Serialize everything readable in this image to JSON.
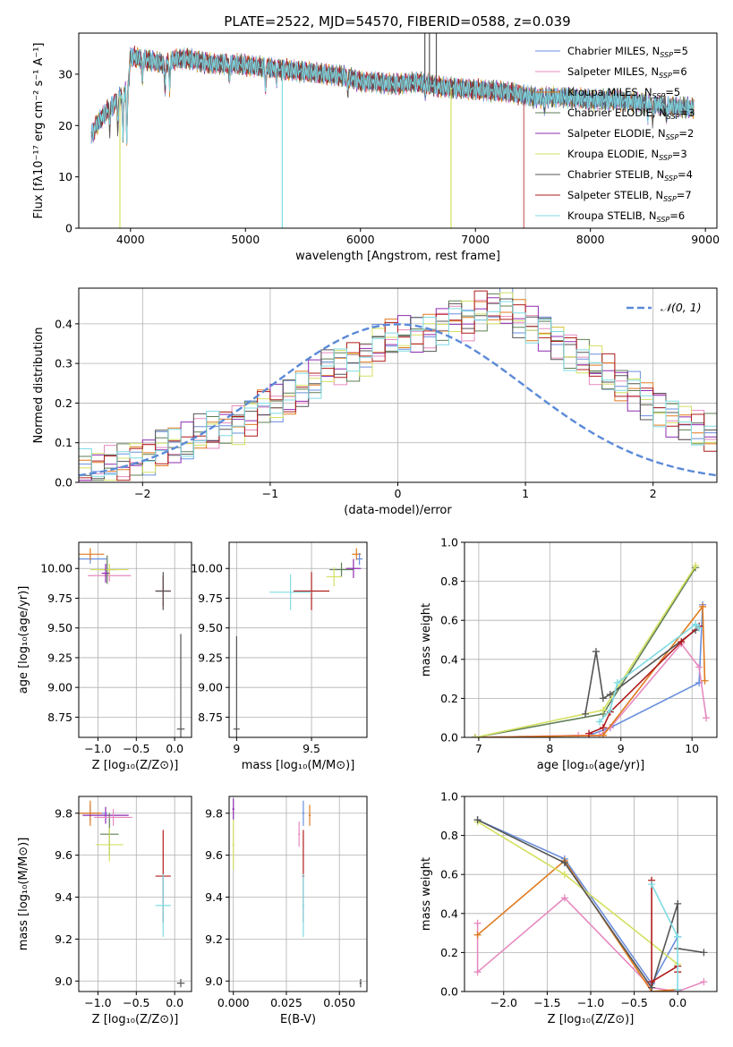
{
  "figure": {
    "title": "PLATE=2522, MJD=54570, FIBERID=0588, z=0.039"
  },
  "colors": {
    "chabrier_miles": "#6a8fdc",
    "salpeter_miles": "#e68ac0",
    "kroupa_miles": "#e07a1f",
    "chabrier_elodie": "#5f7f56",
    "salpeter_elodie": "#8e2bb0",
    "kroupa_elodie": "#d4e060",
    "chabrier_stelib": "#555555",
    "salpeter_stelib": "#b01c1c",
    "kroupa_stelib": "#7fdbe3",
    "normal_curve": "#5b8ad8"
  },
  "legend_spectrum": [
    {
      "label": "Chabrier MILES, N",
      "sub": "SSP",
      "tail": "=5",
      "color_key": "chabrier_miles"
    },
    {
      "label": "Salpeter MILES, N",
      "sub": "SSP",
      "tail": "=6",
      "color_key": "salpeter_miles"
    },
    {
      "label": "Kroupa MILES, N",
      "sub": "SSP",
      "tail": "=5",
      "color_key": "kroupa_miles"
    },
    {
      "label": "Chabrier ELODIE, N",
      "sub": "SSP",
      "tail": "=3",
      "color_key": "chabrier_elodie"
    },
    {
      "label": "Salpeter ELODIE, N",
      "sub": "SSP",
      "tail": "=2",
      "color_key": "salpeter_elodie"
    },
    {
      "label": "Kroupa ELODIE, N",
      "sub": "SSP",
      "tail": "=3",
      "color_key": "kroupa_elodie"
    },
    {
      "label": "Chabrier STELIB, N",
      "sub": "SSP",
      "tail": "=4",
      "color_key": "chabrier_stelib"
    },
    {
      "label": "Salpeter STELIB, N",
      "sub": "SSP",
      "tail": "=7",
      "color_key": "salpeter_stelib"
    },
    {
      "label": "Kroupa STELIB, N",
      "sub": "SSP",
      "tail": "=6",
      "color_key": "kroupa_stelib"
    }
  ],
  "chart_data": [
    {
      "id": "spectrum",
      "type": "line",
      "xlabel": "wavelength [Angstrom, rest frame]",
      "ylabel": "Flux [fλ10⁻¹⁷ erg cm⁻² s⁻¹ A⁻¹]",
      "xlim": [
        3550,
        9100
      ],
      "ylim": [
        0,
        38
      ],
      "xticks": [
        4000,
        5000,
        6000,
        7000,
        8000,
        9000
      ],
      "yticks": [
        0,
        10,
        20,
        30
      ],
      "continuum": {
        "x": [
          3660,
          3700,
          3750,
          3800,
          3850,
          3900,
          3950,
          3980,
          4000,
          4100,
          4200,
          4300,
          4400,
          4500,
          4700,
          4900,
          5100,
          5300,
          5500,
          5700,
          5900,
          6000,
          6100,
          6300,
          6500,
          6700,
          7000,
          7300,
          7500,
          7800,
          8000,
          8200,
          8400,
          8600,
          8800,
          8900
        ],
        "y": [
          18,
          20,
          21.5,
          23,
          24,
          25.5,
          26.5,
          27.5,
          33.5,
          33,
          32.5,
          32,
          33,
          33,
          32,
          32,
          31.5,
          31,
          30.5,
          30,
          29.5,
          28.5,
          28.5,
          28,
          28.5,
          27.5,
          27,
          26.5,
          25.5,
          25.5,
          25,
          25,
          24.5,
          24,
          23.5,
          23.5
        ]
      },
      "absorption_features": [
        {
          "x": 3820,
          "depth": 4
        },
        {
          "x": 3890,
          "depth": 6
        },
        {
          "x": 3934,
          "depth": 9
        },
        {
          "x": 3968,
          "depth": 10
        },
        {
          "x": 4102,
          "depth": 4
        },
        {
          "x": 4300,
          "depth": 5
        },
        {
          "x": 4340,
          "depth": 5
        },
        {
          "x": 4861,
          "depth": 3
        },
        {
          "x": 5175,
          "depth": 4
        },
        {
          "x": 5270,
          "depth": 2
        },
        {
          "x": 5890,
          "depth": 3
        },
        {
          "x": 6563,
          "depth": 2
        },
        {
          "x": 7600,
          "depth": 2
        },
        {
          "x": 8500,
          "depth": 2
        },
        {
          "x": 8542,
          "depth": 3
        },
        {
          "x": 8662,
          "depth": 2
        }
      ],
      "spikes": [
        {
          "x": 3908,
          "ymin": 0,
          "color_key": "kroupa_elodie"
        },
        {
          "x": 5320,
          "ymin": 0,
          "color_key": "kroupa_stelib"
        },
        {
          "x": 6788,
          "ymin": 0,
          "color_key": "kroupa_elodie"
        },
        {
          "x": 6560,
          "ymax": 38,
          "color_key": "chabrier_stelib"
        },
        {
          "x": 6600,
          "ymax": 38,
          "color_key": "chabrier_stelib"
        },
        {
          "x": 6660,
          "ymax": 38,
          "color_key": "chabrier_stelib"
        }
      ],
      "cutoffs": [
        {
          "color_key": "salpeter_stelib",
          "x_end": 7420
        }
      ]
    },
    {
      "id": "residual_histogram",
      "type": "histogram",
      "xlabel": "(data-model)/error",
      "ylabel": "Normed distribution",
      "xlim": [
        -2.5,
        2.5
      ],
      "ylim": [
        0,
        0.49
      ],
      "xticks": [
        -2,
        -1,
        0,
        1,
        2
      ],
      "yticks": [
        0.0,
        0.1,
        0.2,
        0.3,
        0.4
      ],
      "bin_width": 0.1,
      "bin_start": -2.5,
      "legend": "𝒩(0, 1)",
      "reference_values": [
        0.03,
        0.03,
        0.04,
        0.04,
        0.05,
        0.06,
        0.07,
        0.09,
        0.09,
        0.1,
        0.12,
        0.13,
        0.15,
        0.15,
        0.17,
        0.19,
        0.2,
        0.21,
        0.23,
        0.26,
        0.29,
        0.3,
        0.31,
        0.32,
        0.35,
        0.36,
        0.37,
        0.37,
        0.38,
        0.4,
        0.42,
        0.41,
        0.43,
        0.44,
        0.44,
        0.41,
        0.4,
        0.38,
        0.36,
        0.33,
        0.31,
        0.29,
        0.27,
        0.25,
        0.23,
        0.21,
        0.19,
        0.16,
        0.15,
        0.13,
        0.12,
        0.11,
        0.1,
        0.09,
        0.08,
        0.06,
        0.06,
        0.05,
        0.04,
        0.04,
        0.03,
        0.03
      ],
      "series_keys": [
        "chabrier_miles",
        "salpeter_miles",
        "kroupa_miles",
        "chabrier_elodie",
        "salpeter_elodie",
        "kroupa_elodie",
        "chabrier_stelib",
        "salpeter_stelib",
        "kroupa_stelib"
      ]
    },
    {
      "id": "age_vs_Z",
      "type": "scatter",
      "xlabel": "Z [log₁₀(Z/Z⊙)]",
      "ylabel": "age  [log₁₀(age/yr)]",
      "xlim": [
        -1.25,
        0.22
      ],
      "ylim": [
        8.58,
        10.22
      ],
      "xticks": [
        -1.0,
        -0.5,
        0.0
      ],
      "xticklabels": [
        "−1.0",
        "−0.5",
        "0.0"
      ],
      "yticks": [
        8.75,
        9.0,
        9.25,
        9.5,
        9.75,
        10.0
      ],
      "points": [
        {
          "x": -1.1,
          "y": 10.08,
          "xerr": 0.22,
          "yerr": 0.04,
          "color_key": "chabrier_miles"
        },
        {
          "x": -1.1,
          "y": 10.12,
          "xerr": 0.18,
          "yerr": 0.05,
          "color_key": "kroupa_miles"
        },
        {
          "x": -0.85,
          "y": 9.94,
          "xerr": 0.28,
          "yerr": 0.05,
          "color_key": "salpeter_miles"
        },
        {
          "x": -0.88,
          "y": 9.99,
          "xerr": 0.12,
          "yerr": 0.12,
          "color_key": "chabrier_elodie"
        },
        {
          "x": -0.85,
          "y": 9.99,
          "xerr": 0.25,
          "yerr": 0.05,
          "color_key": "kroupa_elodie"
        },
        {
          "x": -0.9,
          "y": 9.96,
          "xerr": 0.05,
          "yerr": 0.08,
          "color_key": "salpeter_elodie"
        },
        {
          "x": -0.15,
          "y": 9.81,
          "xerr": 0.1,
          "yerr": 0.13,
          "color_key": "salpeter_stelib"
        },
        {
          "x": -0.15,
          "y": 9.81,
          "xerr": 0.1,
          "yerr": 0.16,
          "color_key": "chabrier_stelib"
        },
        {
          "x": 0.08,
          "y": 8.65,
          "xerr": 0.05,
          "yerr": 0.8,
          "color_key": "chabrier_stelib"
        }
      ]
    },
    {
      "id": "age_vs_mass",
      "type": "scatter",
      "xlabel": "mass [log₁₀(M/M⊙)]",
      "ylabel": "",
      "xlim": [
        8.95,
        9.87
      ],
      "ylim": [
        8.58,
        10.22
      ],
      "xticks": [
        9.0,
        9.5
      ],
      "yticks": [
        8.75,
        9.0,
        9.25,
        9.5,
        9.75,
        10.0
      ],
      "points": [
        {
          "x": 9.8,
          "y": 10.12,
          "xerr": 0.03,
          "yerr": 0.05,
          "color_key": "kroupa_miles"
        },
        {
          "x": 9.82,
          "y": 10.08,
          "xerr": 0.02,
          "yerr": 0.05,
          "color_key": "chabrier_miles"
        },
        {
          "x": 9.78,
          "y": 10.0,
          "xerr": 0.05,
          "yerr": 0.08,
          "color_key": "salpeter_elodie"
        },
        {
          "x": 9.7,
          "y": 9.99,
          "xerr": 0.08,
          "yerr": 0.06,
          "color_key": "chabrier_elodie"
        },
        {
          "x": 9.65,
          "y": 9.93,
          "xerr": 0.05,
          "yerr": 0.08,
          "color_key": "kroupa_elodie"
        },
        {
          "x": 9.5,
          "y": 9.81,
          "xerr": 0.12,
          "yerr": 0.16,
          "color_key": "salpeter_stelib"
        },
        {
          "x": 9.36,
          "y": 9.8,
          "xerr": 0.14,
          "yerr": 0.15,
          "color_key": "kroupa_stelib"
        },
        {
          "x": 9.0,
          "y": 8.65,
          "xerr": 0.02,
          "yerr": 0.78,
          "color_key": "chabrier_stelib"
        }
      ]
    },
    {
      "id": "mass_weight_vs_age",
      "type": "line",
      "xlabel": "age  [log₁₀(age/yr)]",
      "ylabel": "mass weight",
      "xlim": [
        6.8,
        10.35
      ],
      "ylim": [
        0,
        1.0
      ],
      "xticks": [
        7,
        8,
        9,
        10
      ],
      "yticks": [
        0.0,
        0.2,
        0.4,
        0.6,
        0.8,
        1.0
      ],
      "series": [
        {
          "color_key": "chabrier_miles",
          "x": [
            6.95,
            8.55,
            8.85,
            10.1,
            10.15
          ],
          "y": [
            0.0,
            0.01,
            0.05,
            0.28,
            0.68
          ]
        },
        {
          "color_key": "salpeter_miles",
          "x": [
            6.95,
            8.4,
            8.7,
            8.85,
            9.85,
            10.1,
            10.2
          ],
          "y": [
            0.0,
            0.01,
            0.01,
            0.05,
            0.48,
            0.36,
            0.1
          ]
        },
        {
          "color_key": "kroupa_miles",
          "x": [
            6.95,
            8.75,
            10.15,
            10.18
          ],
          "y": [
            0.0,
            0.01,
            0.67,
            0.29
          ]
        },
        {
          "color_key": "chabrier_elodie",
          "x": [
            6.95,
            8.75,
            10.05
          ],
          "y": [
            0.0,
            0.12,
            0.87
          ]
        },
        {
          "color_key": "kroupa_elodie",
          "x": [
            6.95,
            8.75,
            10.05
          ],
          "y": [
            0.0,
            0.14,
            0.88
          ]
        },
        {
          "color_key": "chabrier_stelib",
          "x": [
            8.5,
            8.65,
            8.75,
            8.85,
            10.05,
            10.1
          ],
          "y": [
            0.12,
            0.44,
            0.2,
            0.22,
            0.55,
            0.57
          ]
        },
        {
          "color_key": "salpeter_stelib",
          "x": [
            8.55,
            8.75,
            8.85,
            9.85,
            10.1
          ],
          "y": [
            0.02,
            0.05,
            0.13,
            0.49,
            0.57
          ]
        },
        {
          "color_key": "kroupa_stelib",
          "x": [
            8.7,
            8.85,
            8.95,
            10.05,
            10.1
          ],
          "y": [
            0.08,
            0.14,
            0.28,
            0.58,
            0.56
          ]
        }
      ]
    },
    {
      "id": "mass_vs_Z",
      "type": "scatter",
      "xlabel": "Z [log₁₀(Z/Z⊙)]",
      "ylabel": "mass [log₁₀(M/M⊙)]",
      "xlim": [
        -1.25,
        0.22
      ],
      "ylim": [
        8.95,
        9.88
      ],
      "xticks": [
        -1.0,
        -0.5,
        0.0
      ],
      "xticklabels": [
        "−1.0",
        "−0.5",
        "0.0"
      ],
      "yticks": [
        9.0,
        9.2,
        9.4,
        9.6,
        9.8
      ],
      "points": [
        {
          "x": -1.1,
          "y": 9.8,
          "xerr": 0.22,
          "yerr": 0.04,
          "color_key": "chabrier_miles"
        },
        {
          "x": -1.1,
          "y": 9.8,
          "xerr": 0.15,
          "yerr": 0.06,
          "color_key": "kroupa_miles"
        },
        {
          "x": -0.9,
          "y": 9.79,
          "xerr": 0.3,
          "yerr": 0.04,
          "color_key": "salpeter_elodie"
        },
        {
          "x": -0.85,
          "y": 9.7,
          "xerr": 0.12,
          "yerr": 0.1,
          "color_key": "chabrier_elodie"
        },
        {
          "x": -0.85,
          "y": 9.65,
          "xerr": 0.18,
          "yerr": 0.08,
          "color_key": "kroupa_elodie"
        },
        {
          "x": -0.8,
          "y": 9.78,
          "xerr": 0.25,
          "yerr": 0.04,
          "color_key": "salpeter_miles"
        },
        {
          "x": -0.15,
          "y": 9.5,
          "xerr": 0.1,
          "yerr": 0.22,
          "color_key": "salpeter_stelib"
        },
        {
          "x": -0.15,
          "y": 9.36,
          "xerr": 0.1,
          "yerr": 0.15,
          "color_key": "kroupa_stelib"
        },
        {
          "x": 0.08,
          "y": 8.99,
          "xerr": 0.05,
          "yerr": 0.02,
          "color_key": "chabrier_stelib"
        }
      ]
    },
    {
      "id": "mass_vs_EBV",
      "type": "scatter",
      "xlabel": "E(B-V)",
      "ylabel": "",
      "xlim": [
        -0.002,
        0.063
      ],
      "ylim": [
        8.95,
        9.88
      ],
      "xticks": [
        0.0,
        0.025,
        0.05
      ],
      "xticklabels": [
        "0.000",
        "0.025",
        "0.050"
      ],
      "yticks": [
        9.0,
        9.2,
        9.4,
        9.6,
        9.8
      ],
      "points": [
        {
          "x": 0.0,
          "y": 9.82,
          "xerr": 0.0005,
          "yerr": 0.05,
          "color_key": "salpeter_elodie"
        },
        {
          "x": 0.0,
          "y": 9.65,
          "xerr": 0.0005,
          "yerr": 0.12,
          "color_key": "kroupa_elodie"
        },
        {
          "x": 0.033,
          "y": 9.8,
          "xerr": 0.0005,
          "yerr": 0.06,
          "color_key": "chabrier_miles"
        },
        {
          "x": 0.036,
          "y": 9.79,
          "xerr": 0.0005,
          "yerr": 0.05,
          "color_key": "kroupa_miles"
        },
        {
          "x": 0.031,
          "y": 9.7,
          "xerr": 0.0005,
          "yerr": 0.06,
          "color_key": "salpeter_miles"
        },
        {
          "x": 0.033,
          "y": 9.5,
          "xerr": 0.0005,
          "yerr": 0.22,
          "color_key": "salpeter_stelib"
        },
        {
          "x": 0.033,
          "y": 9.36,
          "xerr": 0.0005,
          "yerr": 0.15,
          "color_key": "kroupa_stelib"
        },
        {
          "x": 0.06,
          "y": 8.99,
          "xerr": 0.0005,
          "yerr": 0.02,
          "color_key": "chabrier_stelib"
        }
      ]
    },
    {
      "id": "mass_weight_vs_Z",
      "type": "line",
      "xlabel": "Z [log₁₀(Z/Z⊙)]",
      "ylabel": "mass weight",
      "xlim": [
        -2.45,
        0.45
      ],
      "ylim": [
        0,
        1.0
      ],
      "xticks": [
        -2.0,
        -1.5,
        -1.0,
        -0.5,
        0.0
      ],
      "xticklabels": [
        "−2.0",
        "−1.5",
        "−1.0",
        "−0.5",
        "0.0"
      ],
      "yticks": [
        0.0,
        0.2,
        0.4,
        0.6,
        0.8,
        1.0
      ],
      "series": [
        {
          "color_key": "chabrier_miles",
          "x": [
            -2.3,
            -1.3,
            -0.3,
            0.0
          ],
          "y": [
            0.88,
            0.68,
            0.04,
            0.28
          ]
        },
        {
          "color_key": "salpeter_miles",
          "x": [
            -2.3,
            -2.3,
            -1.3,
            -0.3,
            0.0,
            0.3
          ],
          "y": [
            0.35,
            0.1,
            0.48,
            0.02,
            0.0,
            0.05
          ]
        },
        {
          "color_key": "kroupa_miles",
          "x": [
            -2.3,
            -1.3,
            -0.3,
            0.0
          ],
          "y": [
            0.29,
            0.67,
            0.0,
            0.01
          ]
        },
        {
          "color_key": "kroupa_elodie",
          "x": [
            -2.3,
            -1.3,
            0.0
          ],
          "y": [
            0.87,
            0.6,
            0.14
          ]
        },
        {
          "color_key": "chabrier_stelib",
          "x": [
            -2.3,
            -1.3,
            -0.3,
            0.0,
            0.0,
            0.3
          ],
          "y": [
            0.88,
            0.66,
            0.02,
            0.45,
            0.22,
            0.2
          ]
        },
        {
          "color_key": "salpeter_stelib",
          "x": [
            -0.3,
            -0.3,
            0.0,
            0.0
          ],
          "y": [
            0.57,
            0.05,
            0.13,
            0.1
          ]
        },
        {
          "color_key": "kroupa_stelib",
          "x": [
            -0.3,
            0.0,
            0.0
          ],
          "y": [
            0.55,
            0.28,
            0.01
          ]
        }
      ]
    }
  ]
}
